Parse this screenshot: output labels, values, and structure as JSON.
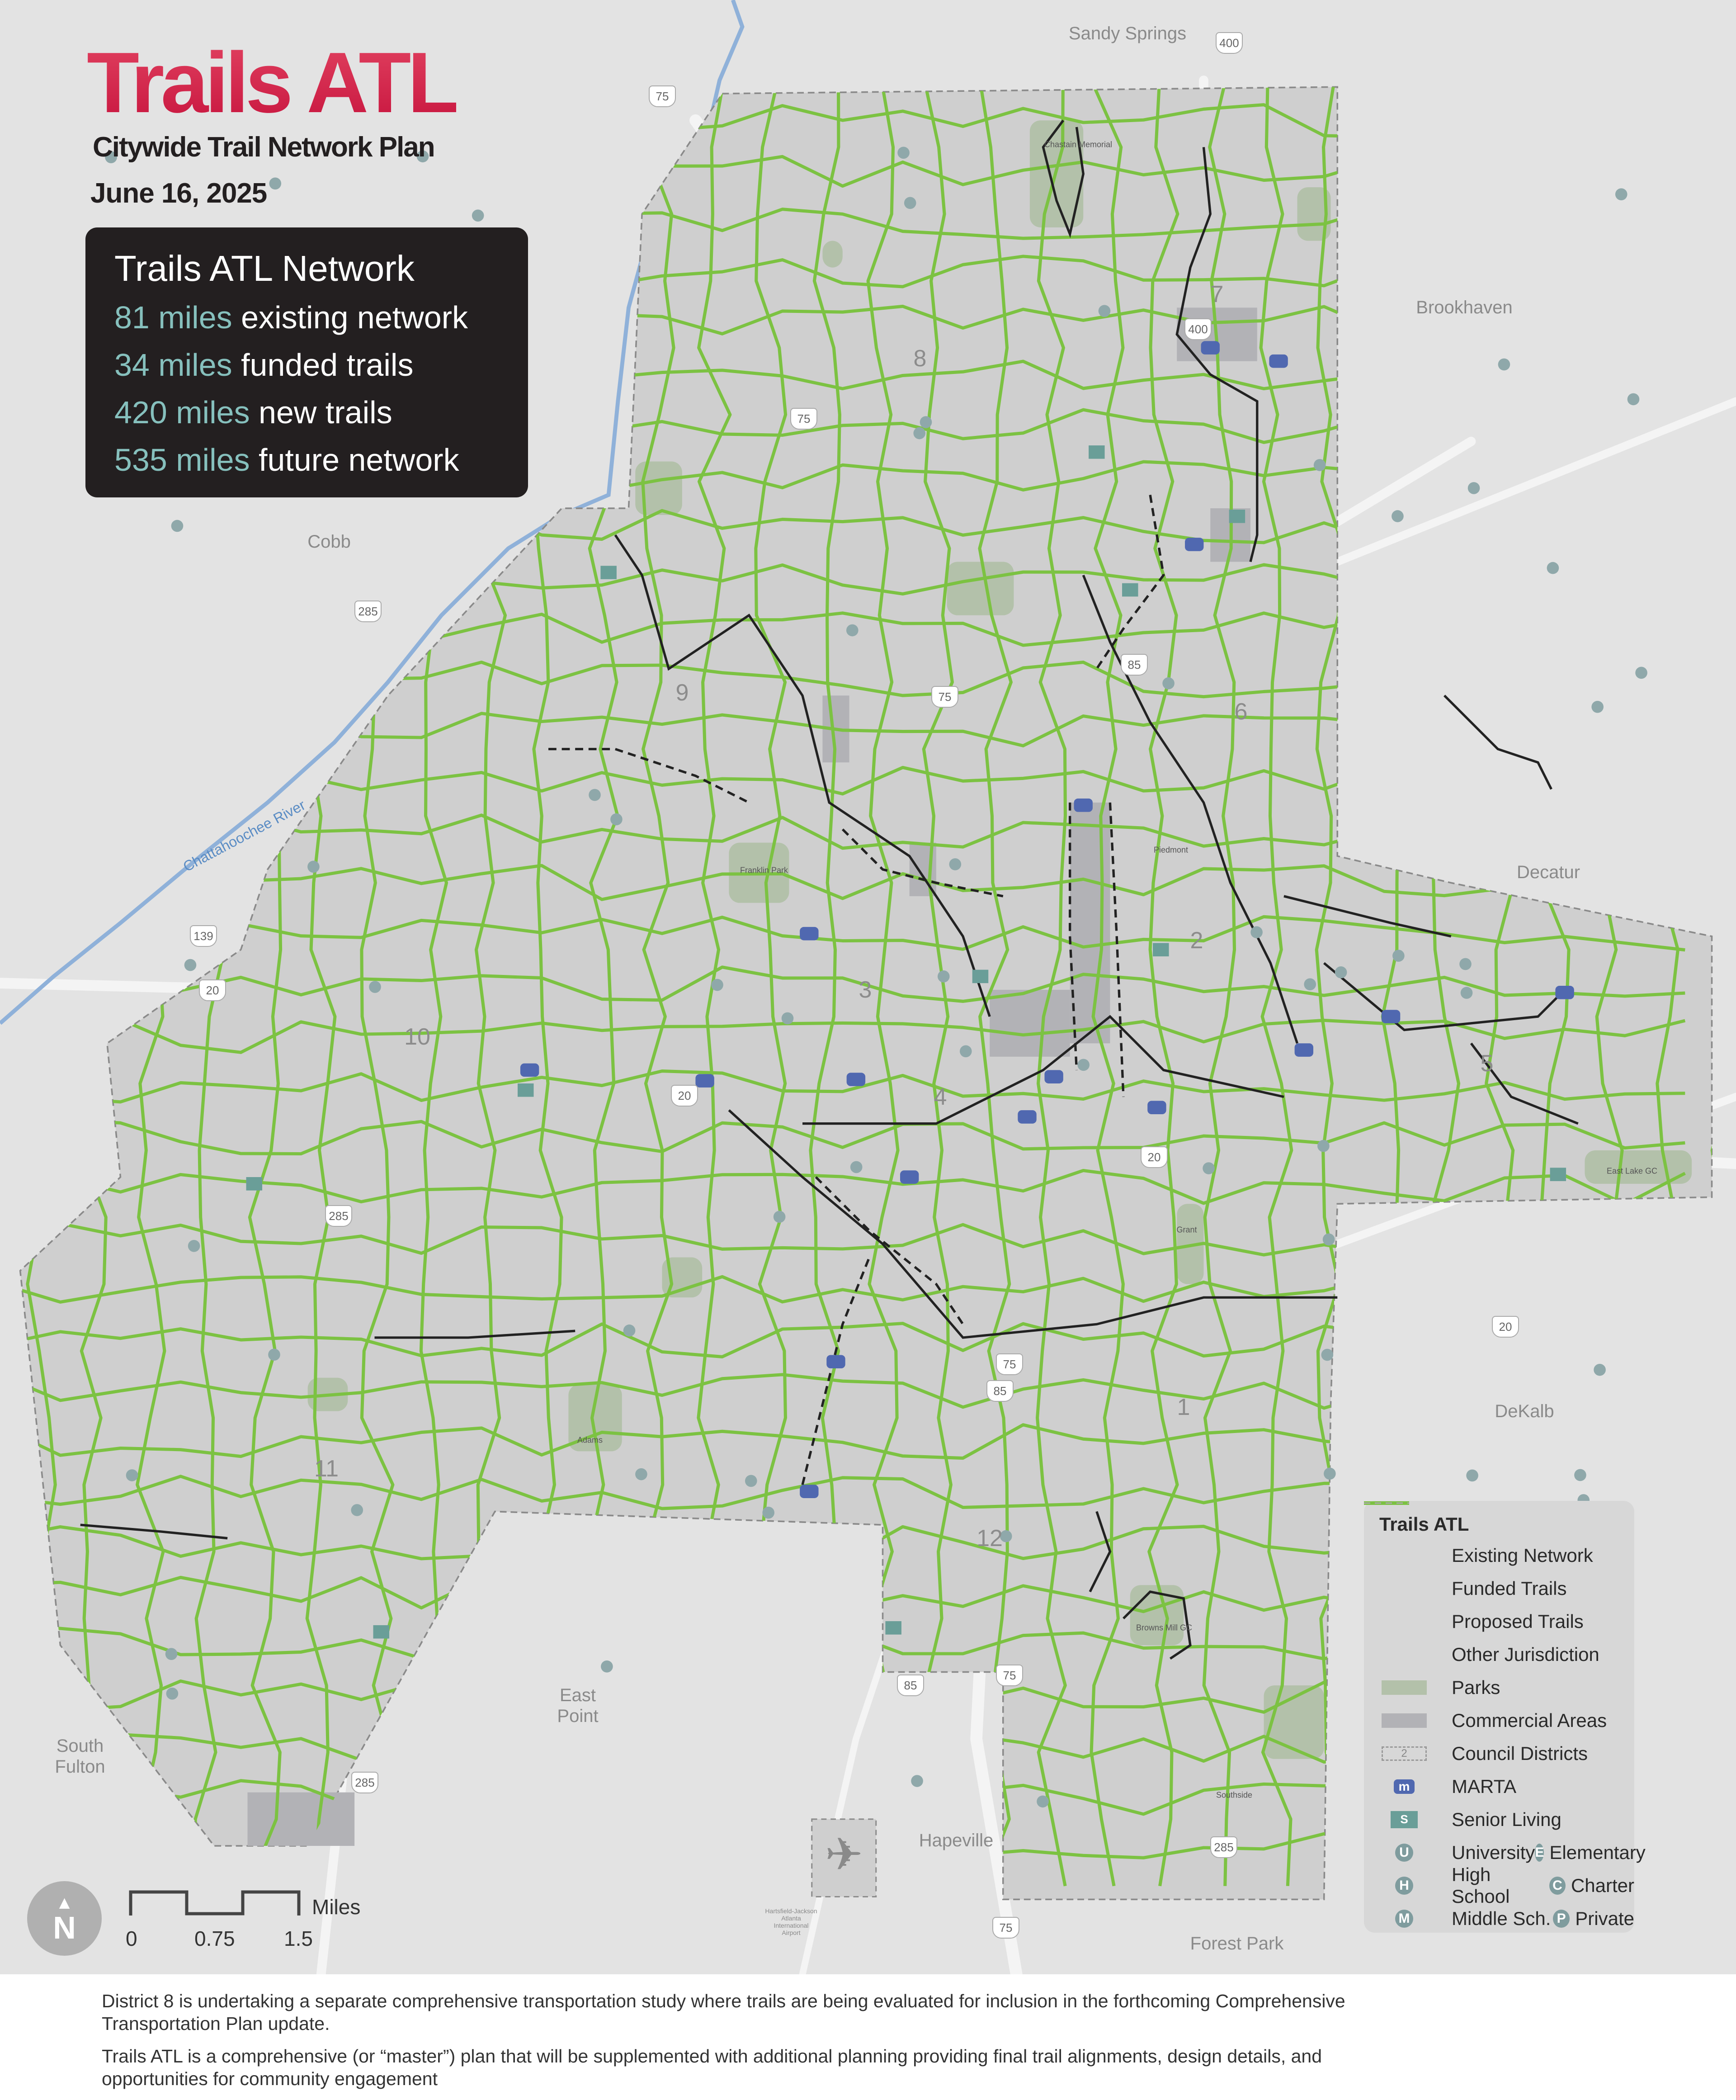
{
  "header": {
    "title": "Trails ATL",
    "subtitle": "Citywide Trail Network Plan",
    "date": "June 16, 2025"
  },
  "stats": {
    "heading": "Trails ATL Network",
    "items": [
      {
        "value": "81 miles",
        "label": "existing network"
      },
      {
        "value": "34 miles",
        "label": "funded trails"
      },
      {
        "value": "420 miles",
        "label": "new trails"
      },
      {
        "value": "535 miles",
        "label": "future network"
      }
    ]
  },
  "colors": {
    "title": "#d9264f",
    "proposed_trail": "#7cc242",
    "existing": "#222222",
    "park": "#b3c1aa",
    "commercial": "#b2b2b6",
    "marta": "#5068b0",
    "senior": "#6a9e98",
    "river": "#8fb1d9",
    "stat_accent": "#86c0bd"
  },
  "places": [
    "Sandy Springs",
    "Brookhaven",
    "Cobb",
    "Decatur",
    "DeKalb",
    "East Point",
    "South Fulton",
    "Hapeville",
    "Forest Park"
  ],
  "districts": [
    "1",
    "2",
    "3",
    "4",
    "5",
    "6",
    "7",
    "8",
    "9",
    "10",
    "11",
    "12"
  ],
  "highways": [
    "75",
    "400",
    "85",
    "285",
    "20",
    "139"
  ],
  "river_label": "Chattahoochee River",
  "parks": [
    "Chastain Memorial",
    "Piedmont",
    "Grant",
    "Adams",
    "Southside",
    "Browns Mill GC",
    "Franklin Park",
    "East Lake GC"
  ],
  "airport_label": "Hartsfield-Jackson Atlanta International Airport",
  "legend": {
    "title": "Trails ATL",
    "items": [
      {
        "label": "Existing Network",
        "icon": "solid-black-line"
      },
      {
        "label": "Funded Trails",
        "icon": "dashed-black-line"
      },
      {
        "label": "Proposed Trails",
        "icon": "green-line"
      },
      {
        "label": "Other Jurisdiction",
        "icon": "dashed-gray-line"
      },
      {
        "label": "Parks",
        "icon": "park-swatch"
      },
      {
        "label": "Commercial Areas",
        "icon": "commercial-swatch"
      },
      {
        "label": "Council Districts",
        "icon": "district-boundary",
        "sample": "2"
      },
      {
        "label": "MARTA",
        "icon": "marta-icon",
        "glyph": "m"
      },
      {
        "label": "Senior Living",
        "icon": "senior-icon",
        "glyph": "S"
      }
    ],
    "schools": [
      {
        "label": "University",
        "glyph": "U"
      },
      {
        "label": "Elementary",
        "glyph": "E"
      },
      {
        "label": "High School",
        "glyph": "H"
      },
      {
        "label": "Charter",
        "glyph": "C"
      },
      {
        "label": "Middle Sch.",
        "glyph": "M"
      },
      {
        "label": "Private",
        "glyph": "P"
      }
    ]
  },
  "scale": {
    "unit": "Miles",
    "ticks": [
      "0",
      "0.75",
      "1.5"
    ],
    "north": "N"
  },
  "footer": {
    "notes": [
      "District 8 is undertaking a separate comprehensive transportation study where trails are being evaluated for inclusion in the forthcoming Comprehensive Transportation Plan update.",
      "Trails ATL is a comprehensive (or “master”) plan that will be supplemented with additional planning providing final trail alignments, design details, and opportunities for community engagement"
    ]
  }
}
